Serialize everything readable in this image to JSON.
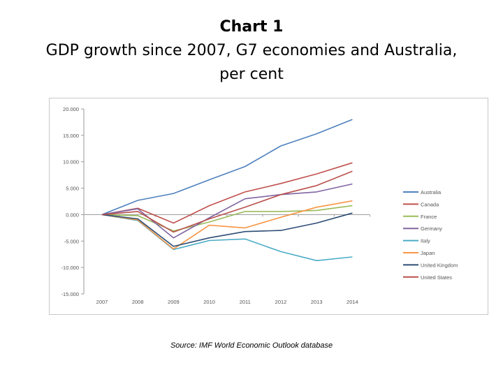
{
  "header": {
    "line1": "Chart 1",
    "line2": "GDP growth since 2007, G7 economies and Australia,",
    "line3": "per cent"
  },
  "source": "Source: IMF World Economic Outlook database",
  "chart_data": {
    "type": "line",
    "x": [
      "2007",
      "2008",
      "2009",
      "2010",
      "2011",
      "2012",
      "2013",
      "2014"
    ],
    "ylim": [
      -15,
      20
    ],
    "y_ticks": [
      "20.000",
      "15.000",
      "10.000",
      "5.000",
      "0.000",
      "-5.000",
      "-10.000",
      "-15.000"
    ],
    "y_tick_values": [
      20,
      15,
      10,
      5,
      0,
      -5,
      -10,
      -15
    ],
    "grid": false,
    "legend_position": "right",
    "series": [
      {
        "name": "Australia",
        "color": "#4f81bd",
        "values": [
          0,
          2.7,
          4.0,
          6.6,
          9.1,
          13.0,
          15.3,
          18.0
        ]
      },
      {
        "name": "Canada",
        "color": "#c0504d",
        "values": [
          0,
          1.2,
          -1.6,
          1.7,
          4.3,
          5.9,
          7.7,
          9.8
        ]
      },
      {
        "name": "France",
        "color": "#9bbb59",
        "values": [
          0,
          -0.2,
          -3.1,
          -1.4,
          0.6,
          0.6,
          0.8,
          1.7
        ]
      },
      {
        "name": "Germany",
        "color": "#8064a2",
        "values": [
          0,
          1.1,
          -4.4,
          -0.6,
          3.0,
          3.8,
          4.3,
          5.8
        ]
      },
      {
        "name": "Italy",
        "color": "#4bacc6",
        "values": [
          0,
          -1.1,
          -6.6,
          -4.9,
          -4.6,
          -7.0,
          -8.7,
          -8.0
        ]
      },
      {
        "name": "Japan",
        "color": "#f79646",
        "values": [
          0,
          -1.0,
          -6.5,
          -2.0,
          -2.5,
          -0.5,
          1.4,
          2.6
        ]
      },
      {
        "name": "United Kingdom",
        "color": "#2c4d75",
        "values": [
          0,
          -0.8,
          -6.0,
          -4.4,
          -3.2,
          -3.0,
          -1.6,
          0.3
        ]
      },
      {
        "name": "United States",
        "color": "#b9504b",
        "values": [
          0,
          0.6,
          -3.3,
          -0.8,
          1.4,
          3.8,
          5.5,
          8.2
        ]
      }
    ]
  }
}
